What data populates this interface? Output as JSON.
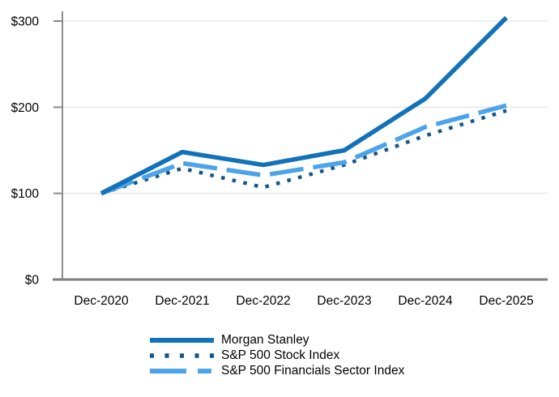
{
  "page": {
    "background": "#ffffff",
    "description": "Cumulative total return performance line chart"
  },
  "chart_data": {
    "type": "line",
    "title": "",
    "xlabel": "",
    "ylabel": "",
    "x_categories": [
      "Dec-2020",
      "Dec-2021",
      "Dec-2022",
      "Dec-2023",
      "Dec-2024",
      "Dec-2025"
    ],
    "y_ticks": [
      {
        "value": 0,
        "label": "$0"
      },
      {
        "value": 100,
        "label": "$100"
      },
      {
        "value": 200,
        "label": "$200"
      },
      {
        "value": 300,
        "label": "$300"
      }
    ],
    "ylim": [
      0,
      310
    ],
    "grid": "horizontal",
    "legend_position": "bottom-center",
    "series": [
      {
        "name": "Morgan Stanley",
        "style": "solid",
        "color": "#1272b9",
        "values": [
          100,
          148,
          133,
          150,
          210,
          304
        ]
      },
      {
        "name": "S&P 500 Stock Index",
        "style": "dotted",
        "color": "#15548a",
        "values": [
          100,
          129,
          107,
          133,
          167,
          196
        ]
      },
      {
        "name": "S&P 500 Financials Sector Index",
        "style": "dashed",
        "color": "#4ba3ea",
        "values": [
          100,
          135,
          121,
          136,
          177,
          202
        ]
      }
    ]
  },
  "axes": {
    "axis_color": "#8c8c8c",
    "baseline_color": "#7f7f7f",
    "grid_color": "#e8e8e8",
    "text_color": "#000000"
  }
}
